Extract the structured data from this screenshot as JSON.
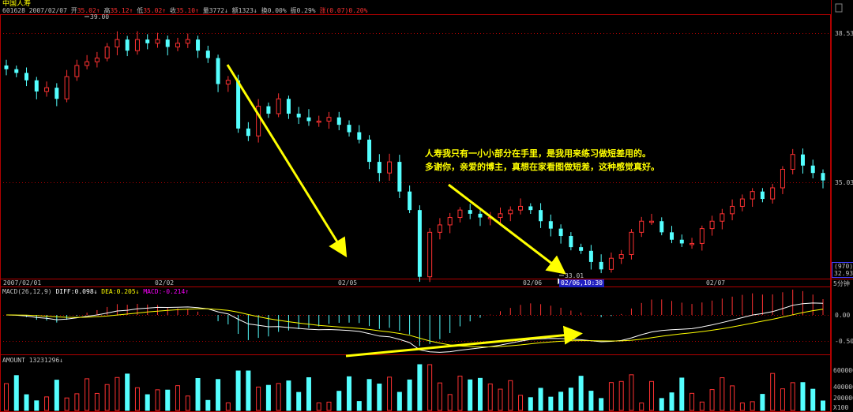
{
  "header": {
    "name": "中国人寿",
    "code": "601628",
    "date": "2007/02/07",
    "open_label": "开",
    "open": "35.02",
    "high_label": "高",
    "high": "35.12",
    "low_label": "低",
    "low": "35.02",
    "close_label": "收",
    "close": "35.10",
    "volume_label": "量",
    "volume": "3772",
    "amount_label": "额",
    "amount": "1323",
    "turnover_label": "换",
    "turnover": "0.00%",
    "amplitude_label": "振",
    "amplitude": "0.29%",
    "change_label": "涨",
    "change": "(0.07)0.20%"
  },
  "annotation": {
    "line1": "人寿我只有一小小部分在手里，是我用来练习做短差用的。",
    "line2": "多谢你，亲爱的博主，真想在家看图做短差，这种感觉真好。"
  },
  "colors": {
    "up": "#ff3232",
    "down": "#54ffff",
    "arrow": "#ffff00",
    "axis": "#b00000",
    "diff": "#ffffff",
    "dea": "#ffff00",
    "macd_label": "#ff00ff",
    "grid": "#b00000"
  },
  "chart_data": [
    {
      "type": "candlestick",
      "price_axis_ticks": [
        "38.53",
        "35.00",
        "35.03"
      ],
      "max_label": "39.00",
      "min_label": "33.01",
      "x_ticks": [
        "2007/02/01",
        "02/02",
        "02/05",
        "02/06",
        "02/07"
      ],
      "cursor_label": "02/06,10:30",
      "period_label": "5分钟",
      "right_box": [
        "(970)",
        "32.93"
      ],
      "close": [
        38.1,
        38.0,
        37.8,
        37.5,
        37.6,
        37.3,
        37.9,
        38.2,
        38.3,
        38.4,
        38.7,
        38.9,
        38.6,
        38.9,
        38.8,
        38.9,
        38.7,
        38.8,
        38.9,
        38.6,
        38.4,
        37.7,
        37.8,
        36.5,
        36.3,
        37.1,
        36.9,
        37.3,
        36.9,
        36.8,
        36.7,
        36.7,
        36.8,
        36.6,
        36.4,
        36.2,
        35.6,
        35.3,
        35.6,
        34.8,
        34.3,
        32.5,
        33.7,
        33.9,
        34.1,
        34.3,
        34.2,
        34.1,
        34.1,
        34.2,
        34.3,
        34.4,
        34.3,
        34.0,
        33.8,
        33.6,
        33.3,
        33.2,
        32.9,
        32.7,
        33.0,
        33.1,
        33.7,
        34.0,
        34.0,
        33.7,
        33.5,
        33.4,
        33.4,
        33.8,
        34.0,
        34.2,
        34.4,
        34.6,
        34.8,
        34.6,
        34.9,
        35.4,
        35.8,
        35.5,
        35.3,
        35.1
      ]
    },
    {
      "type": "bar",
      "label": "MACD(26,12,9)",
      "diff_label": "DIFF:",
      "diff": "0.098",
      "dea_label": "DEA:",
      "dea": "0.205",
      "macd_label": "MACD:",
      "macd": "-0.214",
      "ticks": [
        "0.00",
        "-0.50"
      ]
    },
    {
      "type": "bar",
      "label": "AMOUNT",
      "value": "13231296",
      "ticks": [
        "600000",
        "400000",
        "200000",
        "X100"
      ]
    }
  ]
}
